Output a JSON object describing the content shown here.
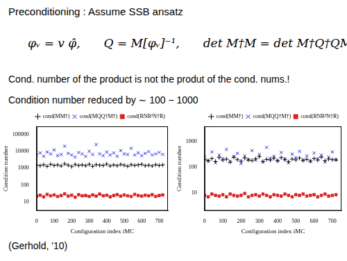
{
  "slide": {
    "title": "Preconditioning : Assume SSB ansatz",
    "equations": [
      "φᵥ = v φ̂,",
      "Q = M[φᵥ]⁻¹,",
      "det M†M = det M†Q†QM"
    ],
    "lines": [
      "Cond. number of the product is not the produt of the cond. nums.!",
      "Condition number reduced by ∼ 100 − 1000"
    ],
    "citation": "(Gerhold, '10)"
  },
  "chart_data": [
    {
      "type": "scatter",
      "x_label": "Configuration index iMC",
      "y_label": "Condition number",
      "log": "y",
      "grid": false,
      "legend": "top",
      "xlim": [
        0,
        750
      ],
      "xticks": [
        0,
        100,
        200,
        300,
        400,
        500,
        600,
        700
      ],
      "ylim": [
        3,
        300000
      ],
      "yticks": [
        10,
        100,
        1000,
        10000,
        100000
      ],
      "x": [
        0,
        20,
        40,
        60,
        80,
        100,
        120,
        140,
        160,
        180,
        200,
        220,
        240,
        260,
        280,
        300,
        320,
        340,
        360,
        380,
        400,
        420,
        440,
        460,
        480,
        500,
        520,
        540,
        560,
        580,
        600,
        620,
        640,
        660,
        680,
        700,
        720
      ],
      "series": [
        {
          "name": "cond(MM†)",
          "color": "#000000",
          "marker": "plus",
          "values": [
            1500,
            1400,
            1600,
            1300,
            1700,
            1450,
            1550,
            1350,
            1800,
            1500,
            1250,
            1650,
            1450,
            1550,
            1400,
            1700,
            1300,
            1600,
            1500,
            1450,
            1750,
            1350,
            1550,
            1400,
            1650,
            1500,
            1300,
            1600,
            1450,
            1550,
            1700,
            1400,
            1500,
            1350,
            1600,
            1450,
            1550
          ]
        },
        {
          "name": "cond(MQQ†M†)",
          "color": "#2222dd",
          "marker": "x",
          "values": [
            6000,
            8000,
            5000,
            9000,
            7000,
            12000,
            5500,
            6500,
            20000,
            7500,
            6000,
            4500,
            8500,
            7000,
            5000,
            10000,
            6500,
            25000,
            7000,
            5500,
            9000,
            6000,
            8000,
            5000,
            11000,
            7000,
            6500,
            15000,
            6000,
            8000,
            5500,
            7500,
            9500,
            6000,
            7000,
            8500,
            6500
          ]
        },
        {
          "name": "cond(RNR²N†R)",
          "color": "#dd2222",
          "marker": "square",
          "values": [
            22,
            25,
            20,
            28,
            23,
            26,
            21,
            24,
            30,
            22,
            25,
            19,
            27,
            23,
            24,
            21,
            26,
            22,
            29,
            23,
            25,
            20,
            24,
            27,
            22,
            26,
            23,
            21,
            28,
            24,
            22,
            25,
            23,
            27,
            21,
            24,
            26
          ]
        }
      ]
    },
    {
      "type": "scatter",
      "x_label": "Configuration index iMC",
      "y_label": "Condition number",
      "log": "y",
      "grid": false,
      "legend": "top",
      "xlim": [
        0,
        750
      ],
      "xticks": [
        0,
        100,
        200,
        300,
        400,
        500,
        600,
        700
      ],
      "ylim": [
        2,
        4000
      ],
      "yticks": [
        10,
        100,
        1000
      ],
      "x": [
        0,
        20,
        40,
        60,
        80,
        100,
        120,
        140,
        160,
        180,
        200,
        220,
        240,
        260,
        280,
        300,
        320,
        340,
        360,
        380,
        400,
        420,
        440,
        460,
        480,
        500,
        520,
        540,
        560,
        580,
        600,
        620,
        640,
        660,
        680,
        700,
        720
      ],
      "series": [
        {
          "name": "cond(MM†)",
          "color": "#000000",
          "marker": "plus",
          "values": [
            200,
            180,
            220,
            170,
            240,
            190,
            210,
            160,
            250,
            200,
            175,
            230,
            195,
            185,
            215,
            260,
            170,
            205,
            190,
            225,
            180,
            240,
            200,
            165,
            210,
            195,
            230,
            185,
            205,
            175,
            220,
            190,
            250,
            180,
            210,
            200,
            195
          ]
        },
        {
          "name": "cond(MQQ†M†)",
          "color": "#2222dd",
          "marker": "x",
          "values": [
            250,
            180,
            400,
            150,
            300,
            220,
            500,
            170,
            260,
            350,
            140,
            280,
            200,
            450,
            190,
            320,
            160,
            600,
            230,
            270,
            180,
            380,
            210,
            150,
            330,
            240,
            420,
            190,
            280,
            170,
            360,
            220,
            300,
            160,
            250,
            400,
            200
          ]
        },
        {
          "name": "cond(RNR²N†R)",
          "color": "#dd2222",
          "marker": "square",
          "values": [
            8,
            7,
            9,
            8,
            7.5,
            8.5,
            7,
            9,
            8,
            7.5,
            8,
            9.5,
            7,
            8,
            8.5,
            7.5,
            9,
            8,
            7,
            8.5,
            8,
            7.5,
            9,
            8,
            7,
            8.5,
            8,
            9,
            7.5,
            8,
            8.5,
            7,
            8,
            9,
            7.5,
            8,
            8.5
          ]
        }
      ]
    }
  ]
}
